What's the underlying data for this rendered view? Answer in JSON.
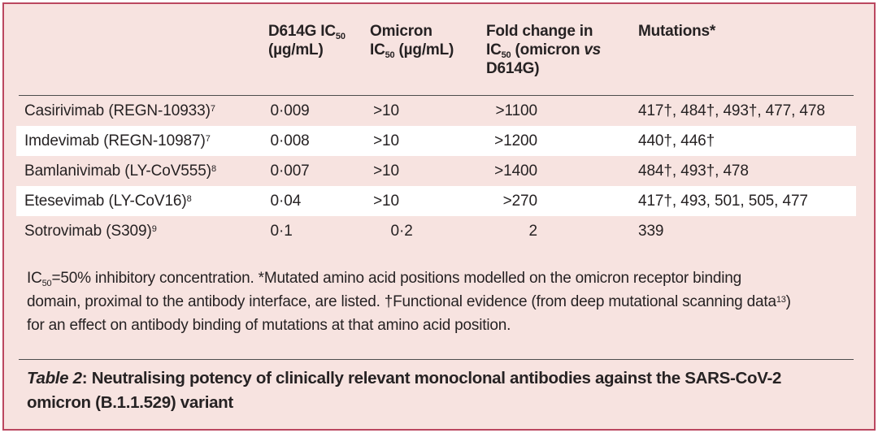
{
  "colors": {
    "frame_border": "#bb4760",
    "table_fill": "#f7e3e0",
    "stripe": "#ffffff",
    "rule": "#4d4d4d",
    "text": "#262223"
  },
  "table": {
    "header": [
      "",
      "D614G IC_{50}\n(µg/mL)",
      "Omicron\nIC_{50} (µg/mL)",
      "Fold change in\nIC_{50} (omicron ~vs~\nD614G)",
      "Mutations*"
    ],
    "rows": [
      {
        "name": "Casirivimab (REGN-10933)^{7}",
        "d614g_ic50": "0·009",
        "omicron_ic50": ">10",
        "fold_change": ">1100",
        "mutations": "417†, 484†, 493†, 477, 478",
        "striped": false
      },
      {
        "name": "Imdevimab (REGN-10987)^{7}",
        "d614g_ic50": "0·008",
        "omicron_ic50": ">10",
        "fold_change": ">1200",
        "mutations": "440†, 446†",
        "striped": true
      },
      {
        "name": "Bamlanivimab (LY-CoV555)^{8}",
        "d614g_ic50": "0·007",
        "omicron_ic50": ">10",
        "fold_change": ">1400",
        "mutations": "484†, 493†, 478",
        "striped": false
      },
      {
        "name": "Etesevimab (LY-CoV16)^{8}",
        "d614g_ic50": "0·04",
        "omicron_ic50": ">10",
        "fold_change": ">270",
        "mutations": "417†, 493, 501, 505, 477",
        "striped": true
      },
      {
        "name": "Sotrovimab (S309)^{9}",
        "d614g_ic50": "0·1",
        "omicron_ic50": "0·2",
        "fold_change": "2",
        "mutations": "339",
        "striped": false
      }
    ]
  },
  "footnote": "IC_{50}=50% inhibitory concentration. *Mutated amino acid positions modelled on the omicron receptor binding\ndomain, proximal to the antibody interface, are listed. †Functional evidence (from deep mutational scanning data^{13})\nfor an effect on antibody binding of mutations at that amino acid position.",
  "caption": "~Table 2~: Neutralising potency of clinically relevant monoclonal antibodies against the SARS-CoV-2\nomicron (B.1.1.529) variant"
}
